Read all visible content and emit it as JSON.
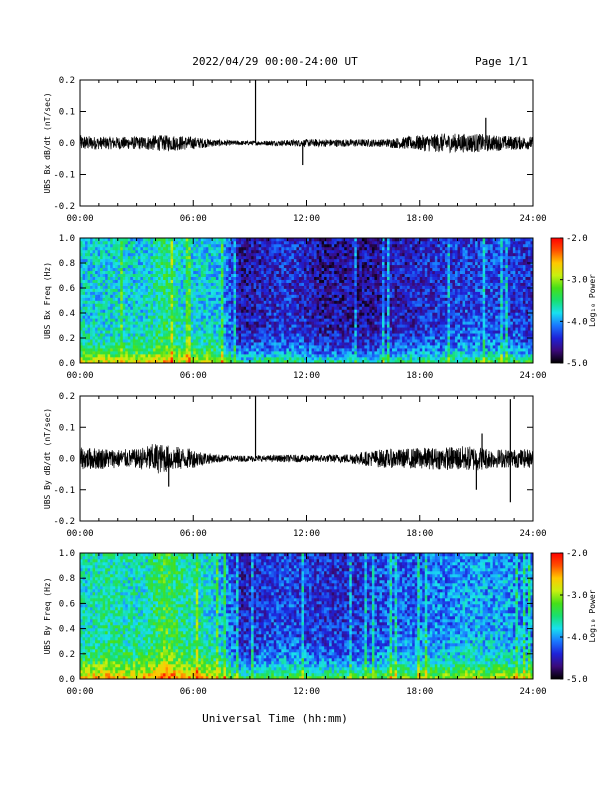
{
  "header": {
    "title": "2022/04/29  00:00-24:00 UT",
    "page": "Page 1/1"
  },
  "footer": {
    "xlabel": "Universal Time (hh:mm)"
  },
  "colors": {
    "trace": "#000000",
    "background": "#ffffff",
    "colormap": [
      "#000000",
      "#3b0a7a",
      "#1e22d8",
      "#1a78ff",
      "#19e0f0",
      "#18e070",
      "#46e018",
      "#c8f010",
      "#ffc800",
      "#ff5000",
      "#ff0000"
    ]
  },
  "chart_data": [
    {
      "type": "line",
      "ylabel": "UBS Bx dB/dt (nT/sec)",
      "x_unit": "hours UT",
      "xlim": [
        0,
        24
      ],
      "ylim": [
        -0.2,
        0.2
      ],
      "xticks": [
        "00:00",
        "06:00",
        "12:00",
        "18:00",
        "24:00"
      ],
      "yticks": [
        "-0.2",
        "-0.1",
        "0.0",
        "0.1",
        "0.2"
      ],
      "series": [
        {
          "x": [
            0,
            1,
            2,
            3,
            4,
            5,
            6,
            7,
            8,
            9,
            9.3,
            10,
            11,
            12,
            13,
            14,
            15,
            16,
            17,
            18,
            19,
            20,
            21,
            22,
            23,
            24
          ],
          "y_mean": [
            0.0,
            0.0,
            0.0,
            0.0,
            0.0,
            0.0,
            0.0,
            0.0,
            0.0,
            0.0,
            0.0,
            0.0,
            0.0,
            0.0,
            0.0,
            0.0,
            0.0,
            0.0,
            0.0,
            0.0,
            0.0,
            0.0,
            0.0,
            0.0,
            0.0,
            0.0
          ],
          "y_amplitude": [
            0.025,
            0.02,
            0.02,
            0.02,
            0.025,
            0.025,
            0.02,
            0.012,
            0.008,
            0.007,
            0.007,
            0.008,
            0.01,
            0.012,
            0.012,
            0.012,
            0.012,
            0.012,
            0.018,
            0.025,
            0.03,
            0.03,
            0.03,
            0.025,
            0.022,
            0.02
          ],
          "spikes": [
            {
              "x": 9.3,
              "y": 0.2
            },
            {
              "x": 11.8,
              "y": -0.07
            },
            {
              "x": 21.5,
              "y": 0.08
            }
          ]
        }
      ]
    },
    {
      "type": "heatmap",
      "ylabel": "UBS Bx Freq (Hz)",
      "x_unit": "hours UT",
      "xlim": [
        0,
        24
      ],
      "ylim": [
        0,
        1.0
      ],
      "xticks": [
        "00:00",
        "06:00",
        "12:00",
        "18:00",
        "24:00"
      ],
      "yticks": [
        "0.0",
        "0.2",
        "0.4",
        "0.6",
        "0.8",
        "1.0"
      ],
      "colorbar": {
        "label": "Log₁₀ Power",
        "ticks": [
          "-2.0",
          "-3.0",
          "-4.0",
          "-5.0"
        ],
        "range": [
          -5.0,
          -2.0
        ]
      },
      "hourly_mean_log_power": [
        -3.8,
        -3.8,
        -3.8,
        -3.8,
        -3.5,
        -3.8,
        -3.8,
        -3.9,
        -4.6,
        -4.5,
        -4.4,
        -4.4,
        -4.6,
        -4.6,
        -4.6,
        -4.6,
        -4.5,
        -4.5,
        -4.4,
        -4.4,
        -4.3,
        -4.3,
        -4.3,
        -4.4
      ],
      "low_freq_enhancement": 1.1,
      "spectral_falloff_hz": 0.1
    },
    {
      "type": "line",
      "ylabel": "UBS By dB/dt (nT/sec)",
      "x_unit": "hours UT",
      "xlim": [
        0,
        24
      ],
      "ylim": [
        -0.2,
        0.2
      ],
      "xticks": [
        "00:00",
        "06:00",
        "12:00",
        "18:00",
        "24:00"
      ],
      "yticks": [
        "-0.2",
        "-0.1",
        "0.0",
        "0.1",
        "0.2"
      ],
      "series": [
        {
          "x": [
            0,
            1,
            2,
            3,
            4,
            5,
            6,
            7,
            8,
            9,
            9.3,
            10,
            11,
            12,
            13,
            14,
            15,
            16,
            17,
            18,
            19,
            20,
            21,
            22,
            23,
            24
          ],
          "y_mean": [
            0.0,
            0.0,
            0.0,
            0.0,
            0.0,
            0.0,
            0.0,
            0.0,
            0.0,
            0.0,
            0.0,
            0.0,
            0.0,
            0.0,
            0.0,
            0.0,
            0.0,
            0.0,
            0.0,
            0.0,
            0.0,
            0.0,
            0.0,
            0.0,
            0.0,
            0.0
          ],
          "y_amplitude": [
            0.035,
            0.035,
            0.03,
            0.03,
            0.05,
            0.04,
            0.03,
            0.015,
            0.01,
            0.01,
            0.01,
            0.01,
            0.012,
            0.012,
            0.012,
            0.014,
            0.022,
            0.03,
            0.03,
            0.035,
            0.035,
            0.04,
            0.04,
            0.03,
            0.03,
            0.03
          ],
          "spikes": [
            {
              "x": 9.3,
              "y": 0.2
            },
            {
              "x": 4.7,
              "y": -0.09
            },
            {
              "x": 21.3,
              "y": 0.08
            },
            {
              "x": 22.8,
              "y": 0.19
            },
            {
              "x": 22.8,
              "y": -0.14
            },
            {
              "x": 21.0,
              "y": -0.1
            }
          ]
        }
      ]
    },
    {
      "type": "heatmap",
      "ylabel": "UBS By Freq (Hz)",
      "x_unit": "hours UT",
      "xlim": [
        0,
        24
      ],
      "ylim": [
        0,
        1.0
      ],
      "xticks": [
        "00:00",
        "06:00",
        "12:00",
        "18:00",
        "24:00"
      ],
      "yticks": [
        "0.0",
        "0.2",
        "0.4",
        "0.6",
        "0.8",
        "1.0"
      ],
      "colorbar": {
        "label": "Log₁₀ Power",
        "ticks": [
          "-2.0",
          "-3.0",
          "-4.0",
          "-5.0"
        ],
        "range": [
          -5.0,
          -2.0
        ]
      },
      "hourly_mean_log_power": [
        -3.7,
        -3.6,
        -3.7,
        -3.7,
        -3.3,
        -3.6,
        -3.7,
        -3.9,
        -4.5,
        -4.4,
        -4.3,
        -4.3,
        -4.4,
        -4.4,
        -4.4,
        -4.3,
        -4.2,
        -4.2,
        -4.1,
        -4.1,
        -4.0,
        -4.0,
        -4.0,
        -4.1
      ],
      "low_freq_enhancement": 1.2,
      "spectral_falloff_hz": 0.12
    }
  ]
}
